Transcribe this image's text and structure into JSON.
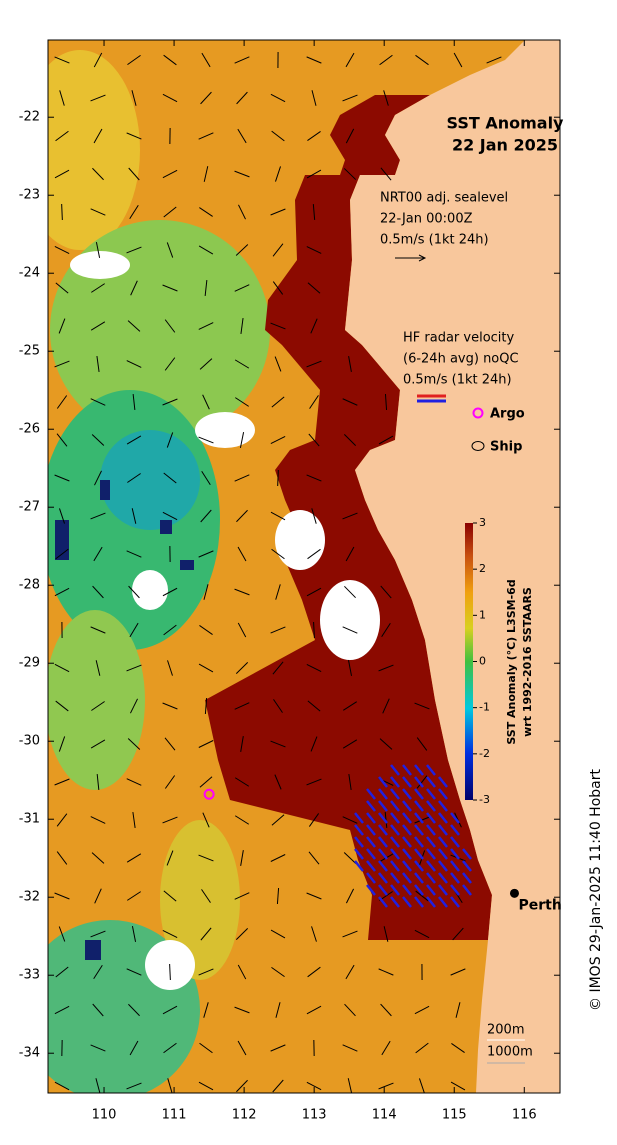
{
  "title": "SST Anomaly",
  "date": "22 Jan 2025",
  "sealevel_legend": [
    "NRT00 adj. sealevel",
    "22-Jan 00:00Z",
    "0.5m/s (1kt 24h)"
  ],
  "radar_legend": [
    "HF radar velocity",
    "(6-24h avg) noQC",
    "0.5m/s (1kt 24h)"
  ],
  "argo": "Argo",
  "ship": "Ship",
  "city": {
    "label": "Perth",
    "lon": 115.86,
    "lat": -31.95
  },
  "argo_float": {
    "lon": 111.5,
    "lat": -30.68
  },
  "depth_contours": [
    "200m",
    "1000m"
  ],
  "colorbar": {
    "label": [
      "SST Anomaly (°C) L3SM-6d",
      "wrt 1992-2016 SSTAARS"
    ],
    "lim": [
      -3,
      3
    ],
    "ticks": [
      -3,
      -2,
      -1,
      0,
      1,
      2,
      3
    ]
  },
  "xlim": [
    109.2,
    116.51
  ],
  "ylim": [
    -34.51,
    -21.01
  ],
  "xticks": [
    110,
    111,
    112,
    113,
    114,
    115,
    116
  ],
  "yticks": [
    -34,
    -33,
    -32,
    -31,
    -30,
    -29,
    -28,
    -27,
    -26,
    -25,
    -24,
    -23,
    -22
  ],
  "credit": "© IMOS 29-Jan-2025 11:40 Hobart"
}
